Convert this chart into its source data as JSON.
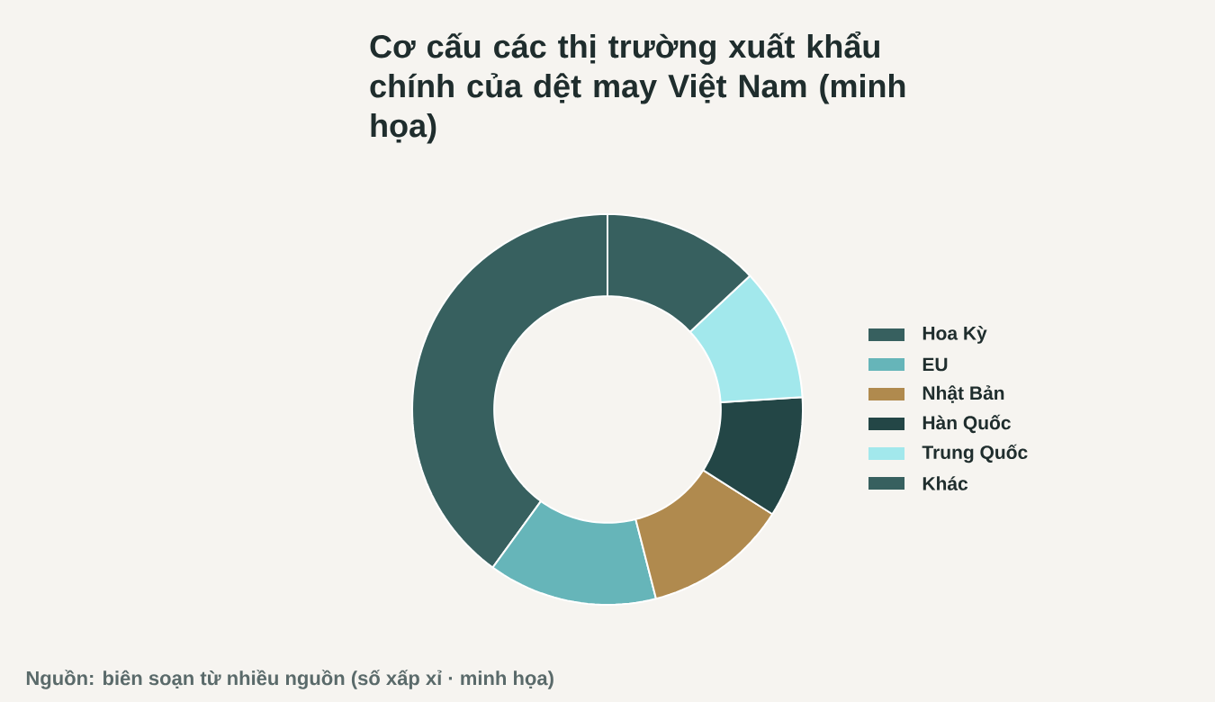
{
  "chart_data": {
    "type": "donut",
    "title": "Cơ cấu các thị trường xuất khẩu chính của dệt may Việt Nam (minh họa)",
    "categories": [
      "Hoa Kỳ",
      "EU",
      "Nhật Bản",
      "Hàn Quốc",
      "Trung Quốc",
      "Khác"
    ],
    "values": [
      40,
      14,
      12,
      10,
      11,
      13
    ],
    "colors": [
      "#37605f",
      "#66b5b9",
      "#b08a4e",
      "#234646",
      "#a2e8ec",
      "#37605f"
    ],
    "legend": "right",
    "annotations": [
      "Nguồn: biên soạn từ nhiều nguồn (số xấp xỉ · minh họa)"
    ]
  }
}
